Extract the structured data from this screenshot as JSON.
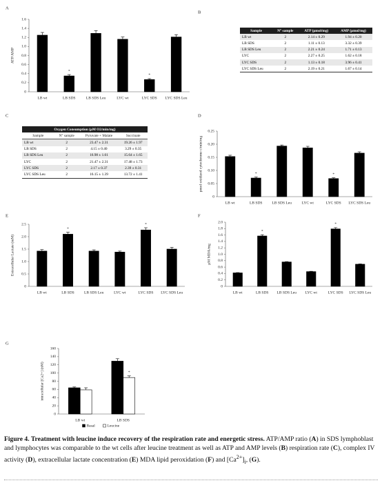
{
  "chart_data": [
    {
      "type": "bar",
      "label": "A",
      "ylabel": "ATP/AMP",
      "categories": [
        "LB wt",
        "LB SDS",
        "LB SDS Leu",
        "LYC wt",
        "LYC SDS",
        "LYC SDS Leu"
      ],
      "values": [
        1.25,
        0.35,
        1.29,
        1.16,
        0.27,
        1.21
      ],
      "errors": [
        0.06,
        0.03,
        0.06,
        0.05,
        0.02,
        0.05
      ],
      "significance": [
        null,
        "*",
        null,
        null,
        "*",
        null
      ],
      "color": "#000000",
      "ylim": [
        0,
        1.6
      ],
      "yticks": [
        0,
        0.2,
        0.4,
        0.6,
        0.8,
        {
          "value": 1,
          "label": "1.0"
        },
        1.2,
        1.4,
        1.6
      ]
    },
    {
      "type": "bar",
      "label": "D",
      "ylabel": "pmol oxidized cytochrome c/min/mg",
      "categories": [
        "LB wt",
        "LB SDS",
        "LB SDS Leu",
        "LYC wt",
        "LYC SDS",
        "LYC SDS Leu"
      ],
      "values": [
        0.153,
        0.071,
        0.193,
        0.186,
        0.069,
        0.166
      ],
      "errors": [
        0.005,
        0.004,
        0.004,
        0.006,
        0.003,
        0.005
      ],
      "significance": [
        null,
        "*",
        null,
        null,
        "*",
        null
      ],
      "color": "#000000",
      "ylim": [
        0,
        0.25
      ],
      "yticks": [
        0,
        0.05,
        {
          "value": 0.1,
          "label": "0.10"
        },
        0.15,
        {
          "value": 0.2,
          "label": "0.20"
        },
        0.25
      ]
    },
    {
      "type": "bar",
      "label": "E",
      "ylabel": "Extracellular Lactate (mM)",
      "categories": [
        "LB wt",
        "LB SDS",
        "LB SDS Leu",
        "LYC wt",
        "LYC SDS",
        "LYC SDS Leu"
      ],
      "values": [
        1.42,
        2.1,
        1.42,
        1.38,
        2.27,
        1.5
      ],
      "errors": [
        0.06,
        0.08,
        0.05,
        0.04,
        0.09,
        0.07
      ],
      "significance": [
        null,
        "*",
        null,
        null,
        "*",
        null
      ],
      "color": "#000000",
      "ylim": [
        0,
        2.5
      ],
      "yticks": [
        0,
        0.5,
        {
          "value": 1,
          "label": "1.0"
        },
        1.5,
        {
          "value": 2,
          "label": "2.0"
        },
        2.5
      ]
    },
    {
      "type": "bar",
      "label": "F",
      "ylabel": "µM MDA/mg",
      "categories": [
        "LB wt",
        "LB SDS",
        "LB SDS Leu",
        "LYC wt",
        "LYC SDS",
        "LYC SDS Leu"
      ],
      "values": [
        0.42,
        1.57,
        0.76,
        0.46,
        1.79,
        0.69
      ],
      "errors": [
        0.01,
        0.04,
        0.01,
        0.01,
        0.04,
        0.01
      ],
      "significance": [
        null,
        "*",
        null,
        null,
        "*",
        null
      ],
      "color": "#000000",
      "ylim": [
        0,
        2
      ],
      "yticks": [
        0,
        0.2,
        0.4,
        0.6,
        0.8,
        {
          "value": 1,
          "label": "1.0"
        },
        1.2,
        1.4,
        1.6,
        1.8,
        {
          "value": 2,
          "label": "2.0"
        }
      ]
    },
    {
      "type": "grouped_bar",
      "label": "G",
      "ylabel": "intracellular [Ca2+] (nM)",
      "categories": [
        "LB wt",
        "LB SDS"
      ],
      "series": [
        {
          "name": "Basal",
          "color": "#000000",
          "values": [
            64,
            129
          ],
          "errors": [
            2,
            6
          ],
          "significance": [
            null,
            null
          ]
        },
        {
          "name": "Leucine",
          "color": "#ffffff",
          "values": [
            59,
            89
          ],
          "errors": [
            5,
            4
          ],
          "significance": [
            null,
            "*"
          ]
        }
      ],
      "ylim": [
        0,
        160
      ],
      "yticks": [
        0,
        20,
        40,
        60,
        80,
        100,
        120,
        140,
        160
      ],
      "legend": "bottom"
    }
  ],
  "tables": [
    {
      "label": "B",
      "header": [
        "Sample",
        "N° sample",
        "ATP (µmol/mg)",
        "AMP (µmol/mg)"
      ],
      "rows": [
        [
          "LB wt",
          2,
          "2.14 ± 0.29",
          "1.94 ± 0.20"
        ],
        [
          "LB SDS",
          2,
          "1.11 ± 0.13",
          "3.32 ± 0.39"
        ],
        [
          "LB SDS Leu",
          2,
          "2.21 ± 0.24",
          "1.71 ± 0.13"
        ],
        [
          "LYC",
          2,
          "2.27 ± 0.25",
          "1.62 ± 0.18"
        ],
        [
          "LYC SDS",
          2,
          "1.13 ± 0.18",
          "3.96 ± 0.41"
        ],
        [
          "LYC SDS Leu",
          2,
          "2.19 ± 0.21",
          "1.67 ± 0.14"
        ]
      ]
    },
    {
      "label": "C",
      "title": "Oxygen Consumption (µM O2/min/mg)",
      "header": [
        "Sample",
        "N° sample",
        "Pyruvate + Malate",
        "Succinate"
      ],
      "rows": [
        [
          "LB wt",
          2,
          "23.47 ± 2.31",
          "19.26 ± 1.97"
        ],
        [
          "LB SDS",
          2,
          "4.15 ± 0.40",
          "3.29 ± 0.35"
        ],
        [
          "LB SDS Leu",
          2,
          "16.98 ± 1.61",
          "15.64 ± 1.65"
        ],
        [
          "LYC",
          2,
          "21.47 ± 2.31",
          "17.48 ± 1.73"
        ],
        [
          "LYC SDS",
          2,
          "2.17 ± 0.37",
          "2.39 ± 0.31"
        ],
        [
          "LYC SDS Leu",
          2,
          "16.15 ± 1.39",
          "13.72 ± 1.41"
        ]
      ]
    }
  ],
  "caption": [
    {
      "text": "Figure 4.",
      "style": "bold"
    },
    {
      "text": " Treatment with leucine induce recovery of the respiration rate and energetic stress.",
      "style": "bold"
    },
    {
      "text": " ATP/AMP ratio (",
      "style": "normal"
    },
    {
      "text": "A",
      "style": "bold"
    },
    {
      "text": ") in SDS lymphoblast and lymphocytes was comparable to the wt cells after leucine treatment as well as ATP and AMP levels (",
      "style": "normal"
    },
    {
      "text": "B",
      "style": "bold"
    },
    {
      "text": ") respiration rate (",
      "style": "normal"
    },
    {
      "text": "C",
      "style": "bold"
    },
    {
      "text": "), complex IV activity (",
      "style": "normal"
    },
    {
      "text": "D",
      "style": "bold"
    },
    {
      "text": "), extracellular lactate concentration (",
      "style": "normal"
    },
    {
      "text": "E",
      "style": "bold"
    },
    {
      "text": ") MDA lipid peroxidation (",
      "style": "normal"
    },
    {
      "text": "F",
      "style": "bold"
    },
    {
      "text": ") and [Ca",
      "style": "normal"
    },
    {
      "text": "2+",
      "style": "sup"
    },
    {
      "text": "]",
      "style": "normal"
    },
    {
      "text": "i",
      "style": "sub"
    },
    {
      "text": ", (",
      "style": "normal"
    },
    {
      "text": "G",
      "style": "bold"
    },
    {
      "text": ").",
      "style": "normal"
    }
  ]
}
